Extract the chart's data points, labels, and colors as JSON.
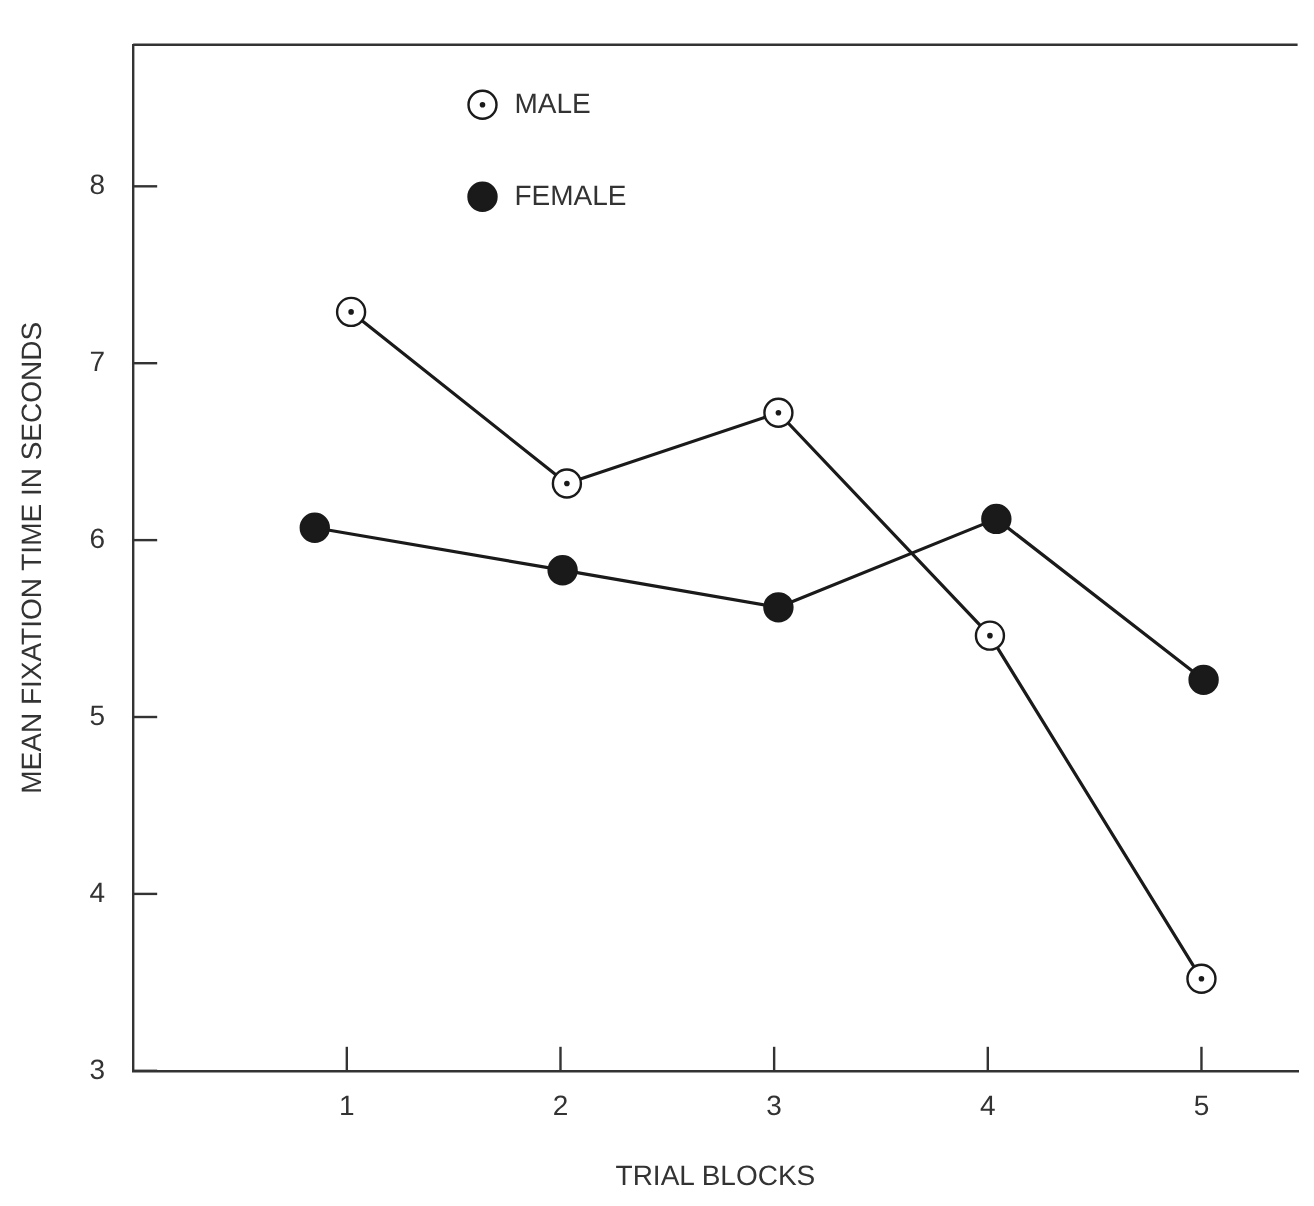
{
  "chart_data": {
    "type": "line",
    "xlabel": "TRIAL BLOCKS",
    "ylabel": "MEAN FIXATION TIME IN SECONDS",
    "xlim": [
      0,
      5.45
    ],
    "xticks": [
      1,
      2,
      3,
      4,
      5
    ],
    "ylim": [
      3,
      8.8
    ],
    "yticks": [
      3,
      4,
      5,
      6,
      7,
      8
    ],
    "grid": false,
    "legend": "top",
    "marker": "circle",
    "series": [
      {
        "name": "MALE",
        "color": "#1a1a1a",
        "colors": [
          "#ffffff",
          "#ffffff",
          "#ffffff",
          "#ffffff",
          "#ffffff"
        ],
        "x": [
          1.02,
          2.03,
          3.02,
          4.01,
          5
        ],
        "values": [
          7.29,
          6.32,
          6.72,
          5.46,
          3.52
        ]
      },
      {
        "name": "FEMALE",
        "color": "#1a1a1a",
        "colors": [
          "#1a1a1a",
          "#1a1a1a",
          "#1a1a1a",
          "#1a1a1a",
          "#1a1a1a"
        ],
        "x": [
          0.85,
          2.01,
          3.02,
          4.04,
          5.01
        ],
        "values": [
          6.07,
          5.83,
          5.62,
          6.12,
          5.21
        ]
      }
    ]
  }
}
